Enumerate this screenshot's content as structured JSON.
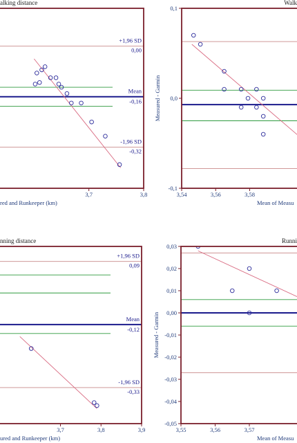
{
  "chart_data": [
    {
      "type": "scatter",
      "title": "Walking distance",
      "title_partial": "alking distance",
      "xlabel": "Mean of Measured and Runkeeper (km)",
      "xlabel_partial": "red and Runkeeper (km)",
      "ylabel": "",
      "xlim": [
        3.5,
        3.8
      ],
      "ylim": [
        -0.45,
        0.12
      ],
      "x_ticks": [
        3.7,
        3.8
      ],
      "x_tick_labels": [
        "3,7",
        "3,8"
      ],
      "y_ticks": [],
      "y_tick_labels": [],
      "grid": false,
      "lines": {
        "upper_loa": {
          "label": "+1,96 SD",
          "value": 0.0,
          "value_label": "0,00"
        },
        "mean": {
          "label": "Mean",
          "value": -0.16,
          "value_label": "-0,16"
        },
        "lower_loa": {
          "label": "-1,96 SD",
          "value": -0.32,
          "value_label": "-0,32"
        },
        "ci": [
          -0.13,
          -0.19
        ]
      },
      "regression": {
        "x": [
          3.6,
          3.758
        ],
        "y": [
          -0.04,
          -0.385
        ]
      },
      "series": [
        {
          "x": [
            3.602,
            3.605,
            3.61,
            3.614,
            3.62,
            3.63,
            3.64,
            3.645,
            3.65,
            3.66,
            3.668,
            3.686,
            3.705,
            3.73,
            3.756
          ],
          "y": [
            -0.12,
            -0.085,
            -0.115,
            -0.075,
            -0.065,
            -0.1,
            -0.1,
            -0.12,
            -0.13,
            -0.15,
            -0.18,
            -0.18,
            -0.24,
            -0.285,
            -0.375
          ]
        }
      ]
    },
    {
      "type": "scatter",
      "title": "Walking distance",
      "title_partial": "Walk",
      "xlabel": "Mean of Measured and Garmin (km)",
      "xlabel_partial": "Mean of Measu",
      "ylabel": "Measured - Garmin",
      "xlim": [
        3.54,
        3.62
      ],
      "ylim": [
        -0.1,
        0.1
      ],
      "x_ticks": [
        3.54,
        3.56,
        3.58
      ],
      "x_tick_labels": [
        "3,54",
        "3,56",
        "3,58"
      ],
      "y_ticks": [
        0.1,
        0.0,
        -0.1
      ],
      "y_tick_labels": [
        "0,1",
        "0,0",
        "-0,1"
      ],
      "grid": false,
      "lines": {
        "upper_loa": {
          "value": 0.063
        },
        "mean": {
          "value": -0.007
        },
        "lower_loa": {
          "value": -0.078
        },
        "ci": [
          0.009,
          -0.025
        ]
      },
      "regression": {
        "x": [
          3.546,
          3.62
        ],
        "y": [
          0.06,
          -0.06
        ]
      },
      "series": [
        {
          "x": [
            3.547,
            3.551,
            3.565,
            3.565,
            3.575,
            3.575,
            3.579,
            3.584,
            3.584,
            3.588,
            3.588
          ],
          "y": [
            0.07,
            0.06,
            0.03,
            0.01,
            0.01,
            -0.01,
            0.0,
            0.01,
            -0.01,
            0.0,
            -0.02
          ]
        }
      ],
      "extra_points": {
        "x": [
          3.588
        ],
        "y": [
          -0.04
        ]
      }
    },
    {
      "type": "scatter",
      "title": "Running distance",
      "title_partial": "nning distance",
      "xlabel": "Mean of Measured and Runkeeper (km)",
      "xlabel_partial": "ured and Runkeeper (km)",
      "ylabel": "",
      "xlim": [
        3.5,
        3.9
      ],
      "ylim": [
        -0.45,
        0.14
      ],
      "x_ticks": [
        3.7,
        3.8,
        3.9
      ],
      "x_tick_labels": [
        "3,7",
        "3,8",
        "3,9"
      ],
      "y_ticks": [],
      "y_tick_labels": [],
      "grid": false,
      "lines": {
        "upper_loa": {
          "label": "+1,96 SD",
          "value": 0.09,
          "value_label": "0,09"
        },
        "mean": {
          "label": "Mean",
          "value": -0.12,
          "value_label": "-0,12"
        },
        "lower_loa": {
          "label": "-1,96 SD",
          "value": -0.33,
          "value_label": "-0,33"
        },
        "ci": [
          0.045,
          -0.015,
          -0.15
        ]
      },
      "regression": {
        "x": [
          3.6,
          3.79
        ],
        "y": [
          -0.16,
          -0.4
        ]
      },
      "series": [
        {
          "x": [
            3.628,
            3.783,
            3.79
          ],
          "y": [
            -0.2,
            -0.38,
            -0.39
          ]
        }
      ]
    },
    {
      "type": "scatter",
      "title": "Running distance",
      "title_partial": "Runni",
      "xlabel": "Mean of Measured and Garmin (km)",
      "xlabel_partial": "Mean of Measu",
      "ylabel": "Measured - Garmin",
      "xlim": [
        3.55,
        3.59
      ],
      "ylim": [
        -0.05,
        0.03
      ],
      "x_ticks": [
        3.55,
        3.56,
        3.57
      ],
      "x_tick_labels": [
        "3,55",
        "3,56",
        "3,57"
      ],
      "y_ticks": [
        0.03,
        0.02,
        0.01,
        0.0,
        -0.01,
        -0.02,
        -0.03,
        -0.04,
        -0.05
      ],
      "y_tick_labels": [
        "0,03",
        "0,02",
        "0,01",
        "0,00",
        "-0,01",
        "-0,02",
        "-0,03",
        "-0,04",
        "-0,05"
      ],
      "grid": false,
      "lines": {
        "upper_loa": {
          "value": 0.027
        },
        "mean": {
          "value": 0.0
        },
        "lower_loa": {
          "value": -0.027
        },
        "ci": [
          0.006,
          -0.006
        ]
      },
      "regression": {
        "x": [
          3.555,
          3.59
        ],
        "y": [
          0.028,
          0.003
        ]
      },
      "series": [
        {
          "x": [
            3.555,
            3.565,
            3.57,
            3.57,
            3.578
          ],
          "y": [
            0.03,
            0.01,
            0.02,
            0.0,
            0.01
          ]
        }
      ]
    }
  ],
  "colors": {
    "frame": "#7a1f2b",
    "mean_line": "#1a1a8c",
    "loa_line": "#c98a8a",
    "ci_line": "#2e9a3e",
    "regression": "#d96b82",
    "marker": "#2a2a9a",
    "text": "#1a1a8c",
    "axis_text": "#1f3a7a"
  }
}
